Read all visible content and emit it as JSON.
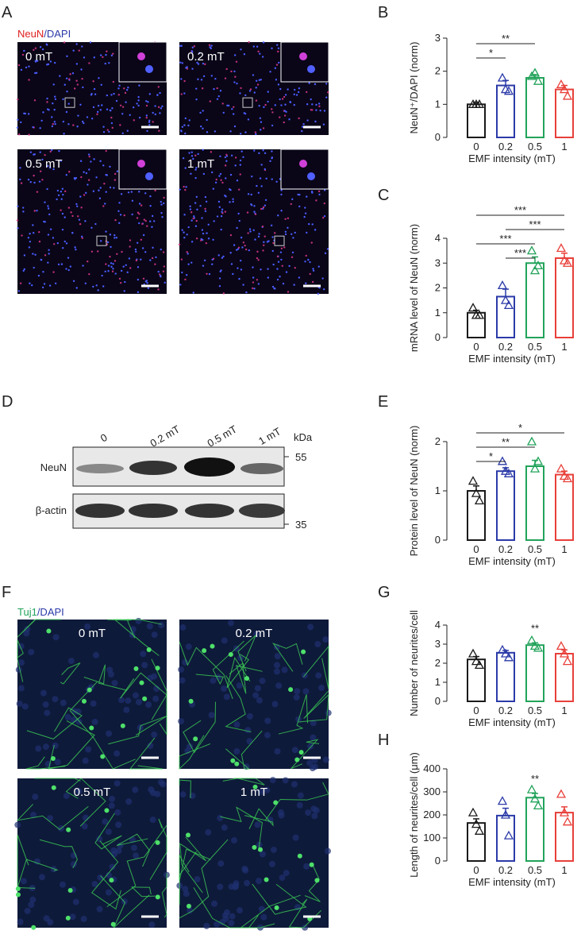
{
  "panel_labels": [
    "A",
    "B",
    "C",
    "D",
    "E",
    "F",
    "G",
    "H"
  ],
  "neun_images": {
    "stain": "NeuN",
    "counter": "/DAPI",
    "labels": [
      "0 mT",
      "0.2 mT",
      "0.5 mT",
      "1 mT"
    ]
  },
  "tuj1_images": {
    "stain": "Tuj1",
    "counter": "/DAPI",
    "labels": [
      "0 mT",
      "0.2 mT",
      "0.5 mT",
      "1 mT"
    ]
  },
  "blot": {
    "lanes": [
      "0",
      "0.2 mT",
      "0.5 mT",
      "1 mT"
    ],
    "rows": [
      "NeuN",
      "β-actin"
    ],
    "unit": "kDa",
    "markers": [
      "55",
      "35"
    ]
  },
  "chart_data": [
    {
      "type": "bar",
      "ylabel": "NeuN⁺/DAPI (norm)",
      "xlabel": "EMF intensity  (mT)",
      "categories": [
        "0",
        "0.2",
        "0.5",
        "1"
      ],
      "colors": [
        "#1a1a1a",
        "#2b3aa8",
        "#22a35a",
        "#e8403a"
      ],
      "values": [
        1.0,
        1.57,
        1.8,
        1.45
      ],
      "errors": [
        0.05,
        0.15,
        0.1,
        0.12
      ],
      "points": [
        [
          1.0,
          1.0,
          1.0
        ],
        [
          1.8,
          1.45,
          1.4
        ],
        [
          1.85,
          1.95,
          1.7
        ],
        [
          1.6,
          1.45,
          1.25
        ]
      ],
      "ylim": [
        0,
        3
      ],
      "yticks": [
        0,
        1,
        2,
        3
      ],
      "significance": [
        {
          "between": [
            "0",
            "0.2"
          ],
          "label": "*"
        },
        {
          "between": [
            "0",
            "0.5"
          ],
          "label": "**"
        }
      ]
    },
    {
      "type": "bar",
      "ylabel": "mRNA level of NeuN (norm)",
      "xlabel": "EMF intensity  (mT)",
      "categories": [
        "0",
        "0.2",
        "0.5",
        "1"
      ],
      "colors": [
        "#1a1a1a",
        "#2b3aa8",
        "#22a35a",
        "#e8403a"
      ],
      "values": [
        1.0,
        1.65,
        3.0,
        3.2
      ],
      "errors": [
        0.1,
        0.3,
        0.25,
        0.2
      ],
      "points": [
        [
          1.2,
          0.9,
          0.9
        ],
        [
          2.1,
          1.5,
          1.3
        ],
        [
          3.5,
          2.7,
          2.9
        ],
        [
          3.6,
          3.1,
          3.0
        ]
      ],
      "ylim": [
        0,
        4
      ],
      "yticks": [
        0,
        1,
        2,
        3,
        4
      ],
      "significance": [
        {
          "between": [
            "0.2",
            "0.5"
          ],
          "label": "***"
        },
        {
          "between": [
            "0",
            "0.5"
          ],
          "label": "***"
        },
        {
          "between": [
            "0.2",
            "1"
          ],
          "label": "***"
        },
        {
          "between": [
            "0",
            "1"
          ],
          "label": "***"
        }
      ]
    },
    {
      "type": "bar",
      "ylabel": "Protein level of NeuN (norm)",
      "xlabel": "EMF intensity  (mT)",
      "categories": [
        "0",
        "0.2",
        "0.5",
        "1"
      ],
      "colors": [
        "#1a1a1a",
        "#2b3aa8",
        "#22a35a",
        "#e8403a"
      ],
      "values": [
        1.0,
        1.4,
        1.5,
        1.33
      ],
      "errors": [
        0.1,
        0.07,
        0.12,
        0.07
      ],
      "points": [
        [
          1.2,
          0.95,
          0.8
        ],
        [
          1.6,
          1.4,
          1.35
        ],
        [
          2.0,
          1.45,
          1.6
        ],
        [
          1.45,
          1.3,
          1.25
        ]
      ],
      "ylim": [
        0,
        2
      ],
      "yticks": [
        0,
        1,
        2
      ],
      "significance": [
        {
          "between": [
            "0",
            "0.2"
          ],
          "label": "*"
        },
        {
          "between": [
            "0",
            "0.5"
          ],
          "label": "**"
        },
        {
          "between": [
            "0",
            "1"
          ],
          "label": "*"
        }
      ]
    },
    {
      "type": "bar",
      "ylabel": "Number of neurites/cell",
      "xlabel": "EMF intensity  (mT)",
      "categories": [
        "0",
        "0.2",
        "0.5",
        "1"
      ],
      "colors": [
        "#1a1a1a",
        "#2b3aa8",
        "#22a35a",
        "#e8403a"
      ],
      "values": [
        2.2,
        2.55,
        2.95,
        2.5
      ],
      "errors": [
        0.15,
        0.12,
        0.12,
        0.2
      ],
      "points": [
        [
          2.5,
          2.1,
          1.9
        ],
        [
          2.7,
          2.5,
          2.3
        ],
        [
          3.2,
          2.9,
          2.8
        ],
        [
          2.9,
          2.5,
          2.1
        ]
      ],
      "ylim": [
        0,
        4
      ],
      "yticks": [
        0,
        1,
        2,
        3,
        4
      ],
      "significance": [
        {
          "over": "0.5",
          "label": "**"
        }
      ]
    },
    {
      "type": "bar",
      "ylabel": "Length of neurites/cell (μm)",
      "xlabel": "EMF intensity  (mT)",
      "categories": [
        "0",
        "0.2",
        "0.5",
        "1"
      ],
      "colors": [
        "#1a1a1a",
        "#2b3aa8",
        "#22a35a",
        "#e8403a"
      ],
      "values": [
        165,
        197,
        275,
        210
      ],
      "errors": [
        18,
        32,
        18,
        25
      ],
      "points": [
        [
          210,
          160,
          130
        ],
        [
          260,
          200,
          110
        ],
        [
          310,
          270,
          240
        ],
        [
          290,
          210,
          170
        ]
      ],
      "ylim": [
        0,
        400
      ],
      "yticks": [
        0,
        100,
        200,
        300,
        400
      ],
      "significance": [
        {
          "over": "0.5",
          "label": "**"
        }
      ]
    }
  ]
}
